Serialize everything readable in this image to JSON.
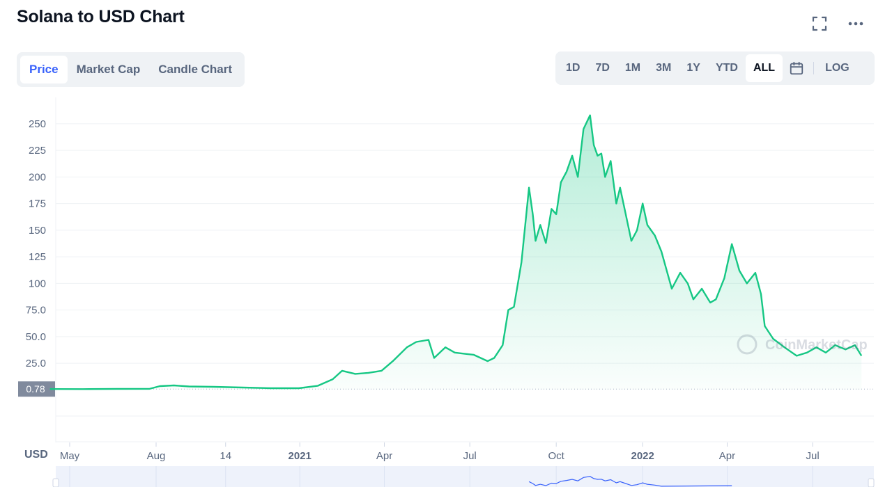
{
  "title": "Solana to USD Chart",
  "icons": {
    "fullscreen": "fullscreen-icon",
    "more": "more-horizontal-icon",
    "calendar": "calendar-icon"
  },
  "tabs": [
    {
      "label": "Price",
      "active": true
    },
    {
      "label": "Market Cap",
      "active": false
    },
    {
      "label": "Candle Chart",
      "active": false
    }
  ],
  "ranges": [
    {
      "label": "1D",
      "active": false
    },
    {
      "label": "7D",
      "active": false
    },
    {
      "label": "1M",
      "active": false
    },
    {
      "label": "3M",
      "active": false
    },
    {
      "label": "1Y",
      "active": false
    },
    {
      "label": "YTD",
      "active": false
    },
    {
      "label": "ALL",
      "active": true
    }
  ],
  "log_label": "LOG",
  "currency_label": "USD",
  "watermark": "CoinMarketCap",
  "colors": {
    "line": "#16c784",
    "text": "#58667e",
    "navigator": "#3861fb",
    "marker": "#808a9d"
  },
  "chart_data": {
    "type": "area",
    "ylim": [
      0,
      265
    ],
    "y_ticks": [
      "25.0",
      "50.0",
      "75.0",
      "100",
      "125",
      "150",
      "175",
      "200",
      "225",
      "250"
    ],
    "y_tick_values": [
      25,
      50,
      75,
      100,
      125,
      150,
      175,
      200,
      225,
      250
    ],
    "x_ticks": [
      {
        "label": "May",
        "date": "2020-05-01",
        "bold": false
      },
      {
        "label": "Aug",
        "date": "2020-08-01",
        "bold": false
      },
      {
        "label": "14",
        "date": "2020-10-14",
        "bold": false
      },
      {
        "label": "2021",
        "date": "2021-01-01",
        "bold": true
      },
      {
        "label": "Apr",
        "date": "2021-04-01",
        "bold": false
      },
      {
        "label": "Jul",
        "date": "2021-07-01",
        "bold": false
      },
      {
        "label": "Oct",
        "date": "2021-10-01",
        "bold": false
      },
      {
        "label": "2022",
        "date": "2022-01-01",
        "bold": true
      },
      {
        "label": "Apr",
        "date": "2022-04-01",
        "bold": false
      },
      {
        "label": "Jul",
        "date": "2022-07-01",
        "bold": false
      }
    ],
    "start_price_marker": "0.78",
    "start_price_value": 0.78,
    "grid": true,
    "series": [
      {
        "x": [
          "2020-04-10",
          "2020-05-15",
          "2020-06-20",
          "2020-07-25",
          "2020-08-05",
          "2020-08-20",
          "2020-09-05",
          "2020-10-01",
          "2020-11-01",
          "2020-12-01",
          "2020-12-31",
          "2021-01-20",
          "2021-02-05",
          "2021-02-15",
          "2021-03-01",
          "2021-03-15",
          "2021-03-29",
          "2021-04-10",
          "2021-04-25",
          "2021-05-05",
          "2021-05-18",
          "2021-05-24",
          "2021-06-05",
          "2021-06-15",
          "2021-06-25",
          "2021-07-05",
          "2021-07-20",
          "2021-07-27",
          "2021-08-05",
          "2021-08-11",
          "2021-08-17",
          "2021-08-25",
          "2021-09-02",
          "2021-09-06",
          "2021-09-09",
          "2021-09-14",
          "2021-09-20",
          "2021-09-26",
          "2021-10-01",
          "2021-10-06",
          "2021-10-12",
          "2021-10-18",
          "2021-10-24",
          "2021-10-30",
          "2021-11-06",
          "2021-11-10",
          "2021-11-14",
          "2021-11-18",
          "2021-11-22",
          "2021-11-28",
          "2021-12-04",
          "2021-12-08",
          "2021-12-14",
          "2021-12-20",
          "2021-12-26",
          "2022-01-01",
          "2022-01-06",
          "2022-01-14",
          "2022-01-21",
          "2022-02-01",
          "2022-02-10",
          "2022-02-18",
          "2022-02-24",
          "2022-03-05",
          "2022-03-14",
          "2022-03-20",
          "2022-03-29",
          "2022-04-06",
          "2022-04-14",
          "2022-04-22",
          "2022-05-01",
          "2022-05-07",
          "2022-05-11",
          "2022-05-20",
          "2022-06-01",
          "2022-06-14",
          "2022-06-25",
          "2022-07-05",
          "2022-07-15",
          "2022-07-25",
          "2022-08-05",
          "2022-08-15",
          "2022-08-22"
        ],
        "y": [
          0.78,
          0.7,
          0.9,
          1.0,
          3.5,
          4.2,
          3.2,
          2.9,
          2.2,
          1.6,
          1.6,
          3.8,
          10,
          18,
          15,
          16,
          18,
          27,
          40,
          45,
          47,
          30,
          40,
          35,
          34,
          33,
          27,
          30,
          42,
          75,
          78,
          120,
          190,
          165,
          140,
          155,
          138,
          170,
          165,
          195,
          205,
          220,
          200,
          245,
          258,
          230,
          220,
          222,
          200,
          215,
          175,
          190,
          165,
          140,
          150,
          175,
          155,
          145,
          130,
          95,
          110,
          100,
          85,
          95,
          82,
          85,
          105,
          137,
          112,
          100,
          110,
          90,
          60,
          48,
          40,
          32,
          35,
          40,
          35,
          42,
          38,
          42,
          32
        ]
      }
    ]
  }
}
